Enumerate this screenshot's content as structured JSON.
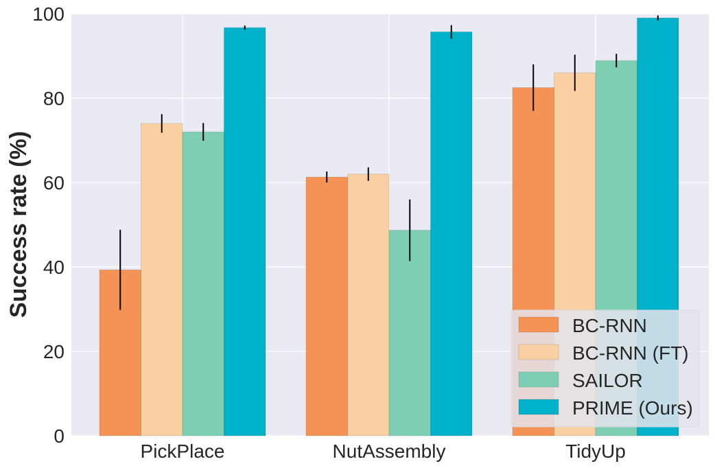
{
  "chart_data": {
    "type": "bar",
    "categories": [
      "PickPlace",
      "NutAssembly",
      "TidyUp"
    ],
    "series": [
      {
        "name": "BC-RNN",
        "values": [
          39.3,
          61.3,
          82.5
        ],
        "errors": [
          9.5,
          1.3,
          5.5
        ],
        "color": "#f59357"
      },
      {
        "name": "BC-RNN (FT)",
        "values": [
          74.0,
          62.0,
          86.0
        ],
        "errors": [
          2.2,
          1.6,
          4.3
        ],
        "color": "#fad0a3"
      },
      {
        "name": "SAILOR",
        "values": [
          72.0,
          48.7,
          88.9
        ],
        "errors": [
          2.1,
          7.3,
          1.6
        ],
        "color": "#7fcfb5"
      },
      {
        "name": "PRIME (Ours)",
        "values": [
          96.7,
          95.7,
          99.0
        ],
        "errors": [
          0.5,
          1.6,
          0.6
        ],
        "color": "#00b2c9"
      }
    ],
    "xlabel": "",
    "ylabel": "Success rate (%)",
    "ylim": [
      0,
      100
    ],
    "yticks": [
      "0",
      "20",
      "40",
      "60",
      "80",
      "100"
    ],
    "grid": true,
    "legend_position": "bottom-right",
    "background": "#eaeaf2"
  }
}
